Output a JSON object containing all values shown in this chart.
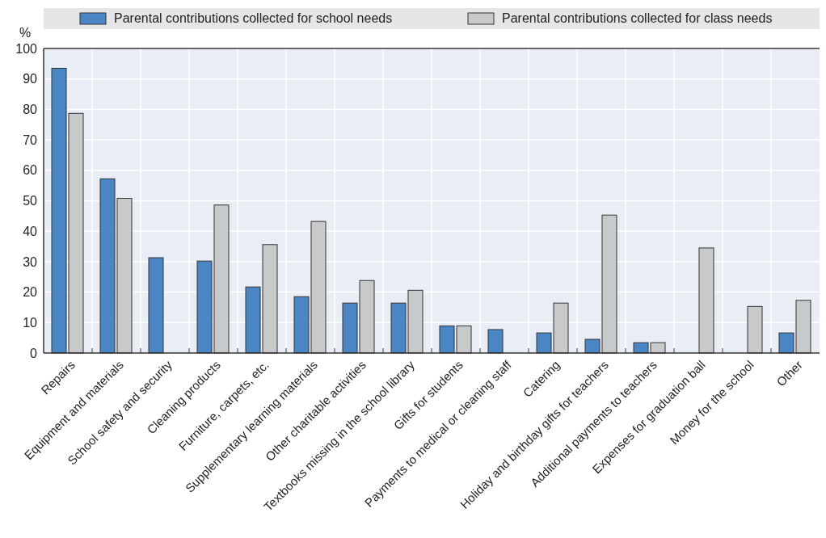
{
  "chart_data": {
    "type": "bar",
    "ylabel": "%",
    "categories": [
      "Repairs",
      "Equipment and materials",
      "School safety and security",
      "Cleaning products",
      "Furniture, carpets, etc.",
      "Supplementary learning materials",
      "Other charitable activities",
      "Textbooks missing in the school library",
      "Gifts for students",
      "Payments to medical or cleaning staff",
      "Catering",
      "Holiday and birthday gifts for teachers",
      "Additional payments to teachers",
      "Expenses for graduation ball",
      "Money for the school",
      "Other"
    ],
    "series": [
      {
        "name": "Parental contributions collected for school needs",
        "color": "#4a86c5",
        "values": [
          93.5,
          57.2,
          31.3,
          30.2,
          21.7,
          18.5,
          16.4,
          16.4,
          8.9,
          7.7,
          6.6,
          4.5,
          3.4,
          null,
          null,
          6.6
        ]
      },
      {
        "name": "Parental contributions collected for class needs",
        "color": "#c8c9cb",
        "values": [
          78.7,
          50.8,
          null,
          48.6,
          35.6,
          43.2,
          23.8,
          20.6,
          8.9,
          null,
          16.4,
          45.3,
          3.4,
          34.5,
          15.3,
          17.3
        ]
      }
    ],
    "ylim": [
      0,
      100
    ],
    "yticks": [
      0,
      10,
      20,
      30,
      40,
      50,
      60,
      70,
      80,
      90,
      100
    ],
    "grid": true,
    "legend": "top"
  }
}
